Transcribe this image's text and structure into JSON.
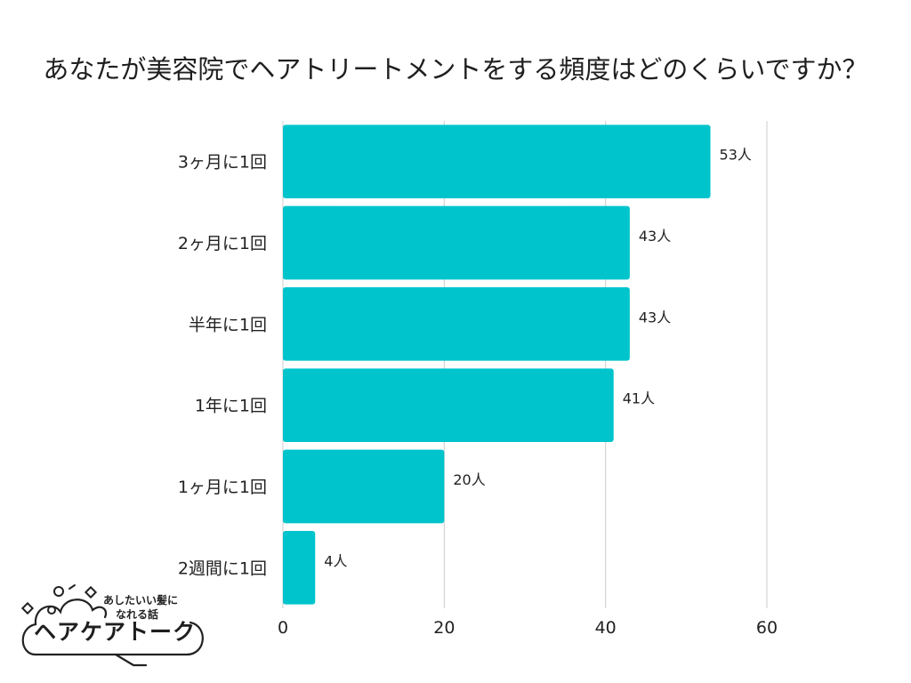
{
  "chart_data": {
    "type": "bar",
    "orientation": "horizontal",
    "title": "あなたが美容院でヘアトリートメントをする頻度はどのくらいですか？",
    "categories": [
      "3ヶ月に1回",
      "2ヶ月に1回",
      "半年に1回",
      "1年に1回",
      "1ヶ月に1回",
      "2週間に1回"
    ],
    "values": [
      53,
      43,
      43,
      41,
      20,
      4
    ],
    "data_labels": [
      "53人",
      "43人",
      "43人",
      "41人",
      "20人",
      "4人"
    ],
    "x_ticks": [
      "0",
      "20",
      "40",
      "60"
    ],
    "xlim": [
      0,
      60
    ],
    "grid": true,
    "bar_color": "#00C4CC",
    "legend": "none"
  },
  "logo": {
    "tagline_line1": "あしたいい髪に",
    "tagline_line2": "なれる話",
    "name": "ヘアケアトーク"
  }
}
